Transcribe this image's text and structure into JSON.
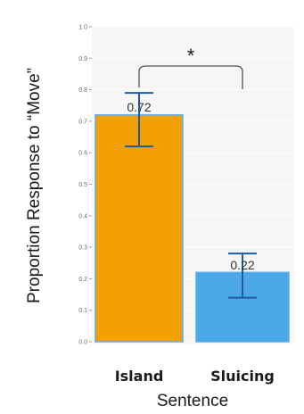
{
  "chart_data": {
    "type": "bar",
    "title": "",
    "xlabel": "Sentence",
    "ylabel": "Proportion Response to “Move”",
    "ylim": [
      0,
      1.0
    ],
    "yticks": [
      "0.0",
      "0.1",
      "0.2",
      "0.3",
      "0.4",
      "0.5",
      "0.6",
      "0.7",
      "0.8",
      "0.9",
      "1.0"
    ],
    "categories": [
      "Island",
      "Sluicing"
    ],
    "values": [
      0.72,
      0.22
    ],
    "data_labels": [
      "0.72",
      "0.22"
    ],
    "error_bars": [
      {
        "low": 0.62,
        "high": 0.79
      },
      {
        "low": 0.14,
        "high": 0.28
      }
    ],
    "grid": true,
    "legend": "none",
    "significance": {
      "label": "*",
      "between": [
        "Island",
        "Sluicing"
      ]
    },
    "colors": {
      "bar_fills": [
        "#f3a007",
        "#4aa7e8"
      ],
      "bar_borders": [
        "#5aaaf0",
        "#5aaaf0"
      ],
      "error_bar": "#1f5c9e",
      "bracket": "#555555",
      "panel_background": "#f6f6f6",
      "gridline": "#ffffff"
    }
  }
}
